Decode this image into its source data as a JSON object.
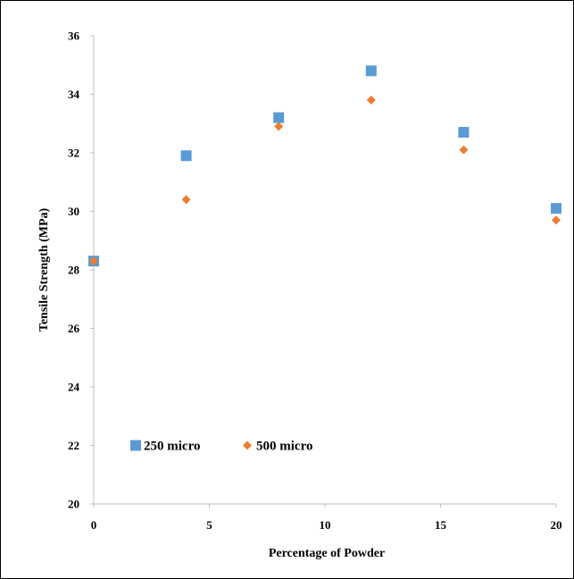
{
  "chart_data": {
    "type": "scatter",
    "title": "",
    "xlabel": "Percentage of Powder",
    "ylabel": "Tensile Strength (MPa)",
    "xlim": [
      0,
      20
    ],
    "ylim": [
      20,
      36
    ],
    "xticks": [
      0,
      5,
      10,
      15,
      20
    ],
    "yticks": [
      20,
      22,
      24,
      26,
      28,
      30,
      32,
      34,
      36
    ],
    "grid": false,
    "legend_position": "bottom-left",
    "series": [
      {
        "name": "250 micro",
        "marker": "square",
        "color": "#5B9BD5",
        "x": [
          0,
          4,
          8,
          12,
          16,
          20
        ],
        "y": [
          28.3,
          31.9,
          33.2,
          34.8,
          32.7,
          30.1
        ]
      },
      {
        "name": "500 micro",
        "marker": "diamond",
        "color": "#ED7D31",
        "x": [
          0,
          4,
          8,
          12,
          16,
          20
        ],
        "y": [
          28.3,
          30.4,
          32.9,
          33.8,
          32.1,
          29.7
        ]
      }
    ]
  }
}
